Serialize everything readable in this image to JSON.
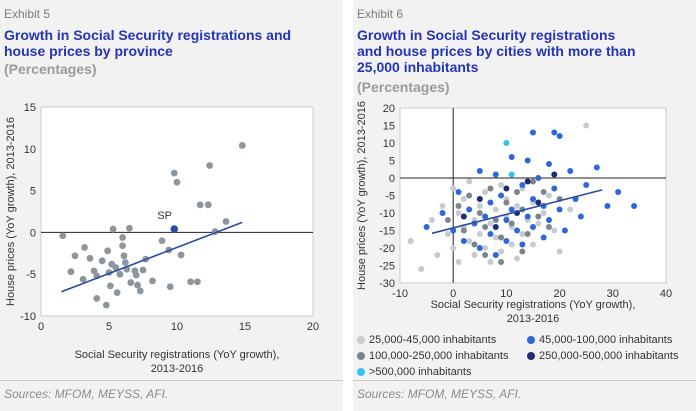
{
  "left": {
    "exhibit": "Exhibit 5",
    "title_line1": "Growth in Social Security registrations and",
    "title_line2": "house prices by province",
    "subtitle": "(Percentages)",
    "sources": "Sources: MFOM, MEYSS, AFI."
  },
  "right": {
    "exhibit": "Exhibit 6",
    "title_line1": "Growth in Social Security registrations",
    "title_line2": "and house prices by cities with more than",
    "title_line3": "25,000 inhabitants",
    "subtitle": "(Percentages)",
    "sources": "Sources: MFOM, MEYSS, AFI."
  },
  "chart_data": [
    {
      "type": "scatter",
      "xlabel_line1": "Social Security registrations (YoY growth),",
      "xlabel_line2": "2013-2016",
      "ylabel": "House prices (YoY growth), 2013-2016",
      "xlim": [
        0,
        20
      ],
      "ylim": [
        -10,
        15
      ],
      "xticks": [
        "0",
        "5",
        "10",
        "15",
        "20"
      ],
      "yticks": [
        "-10",
        "-5",
        "0",
        "5",
        "10",
        "15"
      ],
      "grid": false,
      "point_color": "#8c969c",
      "highlight_color": "#2b4aa8",
      "trend_color": "#2b4aa8",
      "trend": {
        "x": [
          1.5,
          14.8
        ],
        "y": [
          -7.1,
          1.2
        ]
      },
      "highlight": {
        "label": "SP",
        "x": 9.8,
        "y": 0.4
      },
      "points": [
        [
          1.6,
          -0.4
        ],
        [
          2.2,
          -4.7
        ],
        [
          2.5,
          -2.8
        ],
        [
          3.1,
          -5.6
        ],
        [
          3.2,
          -1.8
        ],
        [
          3.6,
          -3.1
        ],
        [
          3.9,
          -4.6
        ],
        [
          4.1,
          -5.2
        ],
        [
          4.1,
          -7.9
        ],
        [
          4.5,
          -3.4
        ],
        [
          4.8,
          -8.7
        ],
        [
          4.9,
          -2.2
        ],
        [
          5.0,
          -4.8
        ],
        [
          5.1,
          -6.4
        ],
        [
          5.2,
          -3.8
        ],
        [
          5.3,
          0.4
        ],
        [
          5.5,
          -4.2
        ],
        [
          5.6,
          -7.2
        ],
        [
          5.8,
          -5.0
        ],
        [
          6.0,
          -0.6
        ],
        [
          6.0,
          -1.6
        ],
        [
          6.1,
          -2.8
        ],
        [
          6.2,
          -3.6
        ],
        [
          6.3,
          -4.4
        ],
        [
          6.5,
          0.5
        ],
        [
          6.6,
          -6.0
        ],
        [
          6.9,
          -4.6
        ],
        [
          7.0,
          -5.1
        ],
        [
          7.1,
          -6.3
        ],
        [
          7.3,
          -7.0
        ],
        [
          7.5,
          -4.5
        ],
        [
          7.7,
          -3.2
        ],
        [
          8.2,
          -5.8
        ],
        [
          8.9,
          -1.0
        ],
        [
          9.4,
          -2.1
        ],
        [
          9.5,
          -6.5
        ],
        [
          9.8,
          7.1
        ],
        [
          10.3,
          -2.7
        ],
        [
          10.0,
          6.0
        ],
        [
          11.0,
          -5.9
        ],
        [
          11.5,
          -5.9
        ],
        [
          11.7,
          3.3
        ],
        [
          12.3,
          3.3
        ],
        [
          12.4,
          8.0
        ],
        [
          12.8,
          0.1
        ],
        [
          13.6,
          1.3
        ],
        [
          14.8,
          10.4
        ]
      ]
    },
    {
      "type": "scatter",
      "xlabel_line1": "Social Security registrations (YoY growth),",
      "xlabel_line2": "2013-2016",
      "ylabel": "House prices (YoY growth), 2013-2016",
      "xlim": [
        -10,
        40
      ],
      "ylim": [
        -30,
        20
      ],
      "xticks": [
        "-10",
        "0",
        "10",
        "20",
        "30",
        "40"
      ],
      "yticks": [
        "-30",
        "-25",
        "-20",
        "-15",
        "-10",
        "-5",
        "0",
        "5",
        "10",
        "15",
        "20"
      ],
      "grid": false,
      "trend_color": "#2b4aa8",
      "trend": {
        "x": [
          -4,
          28
        ],
        "y": [
          -15.8,
          -3.4
        ]
      },
      "legend_position": "bottom",
      "series": [
        {
          "name": "25,000-45,000 inhabitants",
          "color": "#c6cbcf",
          "points": [
            [
              -8,
              -18
            ],
            [
              -6,
              -26
            ],
            [
              -4,
              -12
            ],
            [
              -3,
              -22
            ],
            [
              -2,
              -8
            ],
            [
              -1,
              -16
            ],
            [
              0,
              -3
            ],
            [
              0,
              -20
            ],
            [
              1,
              -10
            ],
            [
              1,
              -24
            ],
            [
              2,
              -14
            ],
            [
              2,
              -6
            ],
            [
              3,
              -18
            ],
            [
              3,
              -1
            ],
            [
              4,
              -12
            ],
            [
              4,
              -22
            ],
            [
              5,
              -8
            ],
            [
              5,
              -16
            ],
            [
              6,
              -20
            ],
            [
              6,
              -4
            ],
            [
              7,
              -13
            ],
            [
              7,
              -24
            ],
            [
              8,
              -9
            ],
            [
              8,
              -17
            ],
            [
              9,
              -2
            ],
            [
              9,
              -21
            ],
            [
              10,
              -11
            ],
            [
              10,
              -6
            ],
            [
              11,
              -19
            ],
            [
              11,
              -14
            ],
            [
              12,
              -23
            ],
            [
              12,
              -8
            ],
            [
              13,
              -16
            ],
            [
              13,
              -3
            ],
            [
              14,
              -12
            ],
            [
              15,
              -19
            ],
            [
              15,
              -7
            ],
            [
              16,
              -13
            ],
            [
              17,
              -10
            ],
            [
              18,
              -5
            ],
            [
              19,
              -15
            ],
            [
              20,
              -21
            ],
            [
              22,
              -9
            ],
            [
              25,
              15
            ]
          ]
        },
        {
          "name": "45,000-100,000 inhabitants",
          "color": "#2f66d9",
          "points": [
            [
              -5,
              -14
            ],
            [
              -2,
              -10
            ],
            [
              0,
              -15
            ],
            [
              1,
              -4
            ],
            [
              2,
              -18
            ],
            [
              3,
              -9
            ],
            [
              4,
              -13
            ],
            [
              5,
              2
            ],
            [
              5,
              -20
            ],
            [
              6,
              -11
            ],
            [
              7,
              -7
            ],
            [
              7,
              -16
            ],
            [
              8,
              1
            ],
            [
              8,
              -22
            ],
            [
              9,
              -5
            ],
            [
              10,
              -12
            ],
            [
              10,
              -18
            ],
            [
              11,
              6
            ],
            [
              11,
              -9
            ],
            [
              12,
              -15
            ],
            [
              13,
              -2
            ],
            [
              13,
              -19
            ],
            [
              14,
              5
            ],
            [
              14,
              -11
            ],
            [
              15,
              -6
            ],
            [
              15,
              -14
            ],
            [
              16,
              0
            ],
            [
              17,
              -8
            ],
            [
              17,
              -17
            ],
            [
              18,
              4
            ],
            [
              18,
              -12
            ],
            [
              19,
              -3
            ],
            [
              20,
              12
            ],
            [
              20,
              -9
            ],
            [
              21,
              -15
            ],
            [
              22,
              2
            ],
            [
              23,
              -6
            ],
            [
              24,
              -11
            ],
            [
              25,
              -2
            ],
            [
              27,
              3
            ],
            [
              29,
              -8
            ],
            [
              31,
              -4
            ],
            [
              34,
              -8
            ],
            [
              15,
              13
            ],
            [
              19,
              13
            ]
          ]
        },
        {
          "name": "100,000-250,000 inhabitants",
          "color": "#7b868c",
          "points": [
            [
              -1,
              -12
            ],
            [
              1,
              -8
            ],
            [
              2,
              -15
            ],
            [
              3,
              -5
            ],
            [
              4,
              -19
            ],
            [
              5,
              -10
            ],
            [
              6,
              -14
            ],
            [
              7,
              -3
            ],
            [
              8,
              -12
            ],
            [
              9,
              -17
            ],
            [
              10,
              -7
            ],
            [
              11,
              -13
            ],
            [
              12,
              -4
            ],
            [
              13,
              -9
            ],
            [
              14,
              -16
            ],
            [
              15,
              -1
            ],
            [
              16,
              -11
            ],
            [
              17,
              -4
            ],
            [
              18,
              -14
            ],
            [
              20,
              -6
            ],
            [
              6,
              -22
            ],
            [
              9,
              -24
            ],
            [
              13,
              -21
            ]
          ]
        },
        {
          "name": "250,000-500,000 inhabitants",
          "color": "#1c2a78",
          "points": [
            [
              2,
              -11
            ],
            [
              5,
              -6
            ],
            [
              8,
              -14
            ],
            [
              10,
              -3
            ],
            [
              12,
              -10
            ],
            [
              14,
              -1
            ],
            [
              16,
              -7
            ],
            [
              19,
              1
            ]
          ]
        },
        {
          "name": ">500,000 inhabitants",
          "color": "#2fc4f2",
          "points": [
            [
              10,
              10
            ],
            [
              11,
              1
            ]
          ]
        }
      ]
    }
  ]
}
